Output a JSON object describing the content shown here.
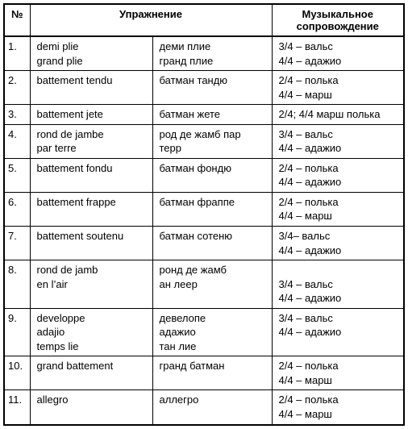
{
  "table": {
    "columns": {
      "num": "№",
      "exercise": "Упражнение",
      "music": "Музыкальное\nсопровождение"
    },
    "rows": [
      {
        "n": "1.",
        "fr": "demi plie\ngrand plie",
        "ru": "деми плие\nгранд плие",
        "mus": "3/4 – вальс\n4/4 – адажио"
      },
      {
        "n": "2.",
        "fr": "battement tendu",
        "ru": "батман тандю",
        "mus": "2/4 – полька\n4/4 – марш"
      },
      {
        "n": "3.",
        "fr": "battement jete",
        "ru": "батман жете",
        "mus": "2/4; 4/4 марш полька"
      },
      {
        "n": "4.",
        "fr": "rond de jambe\npar terre",
        "ru": "род де жамб пар\nтерр",
        "mus": "3/4 – вальс\n4/4 – адажио"
      },
      {
        "n": "5.",
        "fr": "battement fondu",
        "ru": "батман фондю",
        "mus": "2/4 – полька\n4/4 – адажио"
      },
      {
        "n": "6.",
        "fr": "battement frappe",
        "ru": "батман фраппе",
        "mus": "2/4 – полька\n4/4 – марш"
      },
      {
        "n": "7.",
        "fr": "battement soutenu",
        "ru": "батман сотеню",
        "mus": "3/4– вальс\n4/4 – адажио"
      },
      {
        "n": "8.",
        "fr": "rond de jamb\nen l’air",
        "ru": "ронд де жамб\nан леер",
        "mus": "\n3/4 – вальс\n4/4 – адажио"
      },
      {
        "n": "9.",
        "fr": "developpe\nadajio\ntemps lie",
        "ru": "девелопе\nадажио\nтан лие",
        "mus": "3/4 – вальс\n4/4 – адажио"
      },
      {
        "n": "10.",
        "fr": "grand battement",
        "ru": "гранд батман",
        "mus": "2/4 – полька\n4/4 – марш"
      },
      {
        "n": "11.",
        "fr": "allegro",
        "ru": "аллегро",
        "mus": "2/4 – полька\n4/4 – марш"
      }
    ],
    "colors": {
      "border": "#000000",
      "bg": "#ffffff",
      "text": "#000000"
    },
    "font": {
      "family": "Arial",
      "size_pt": 10,
      "header_weight": "bold"
    }
  }
}
